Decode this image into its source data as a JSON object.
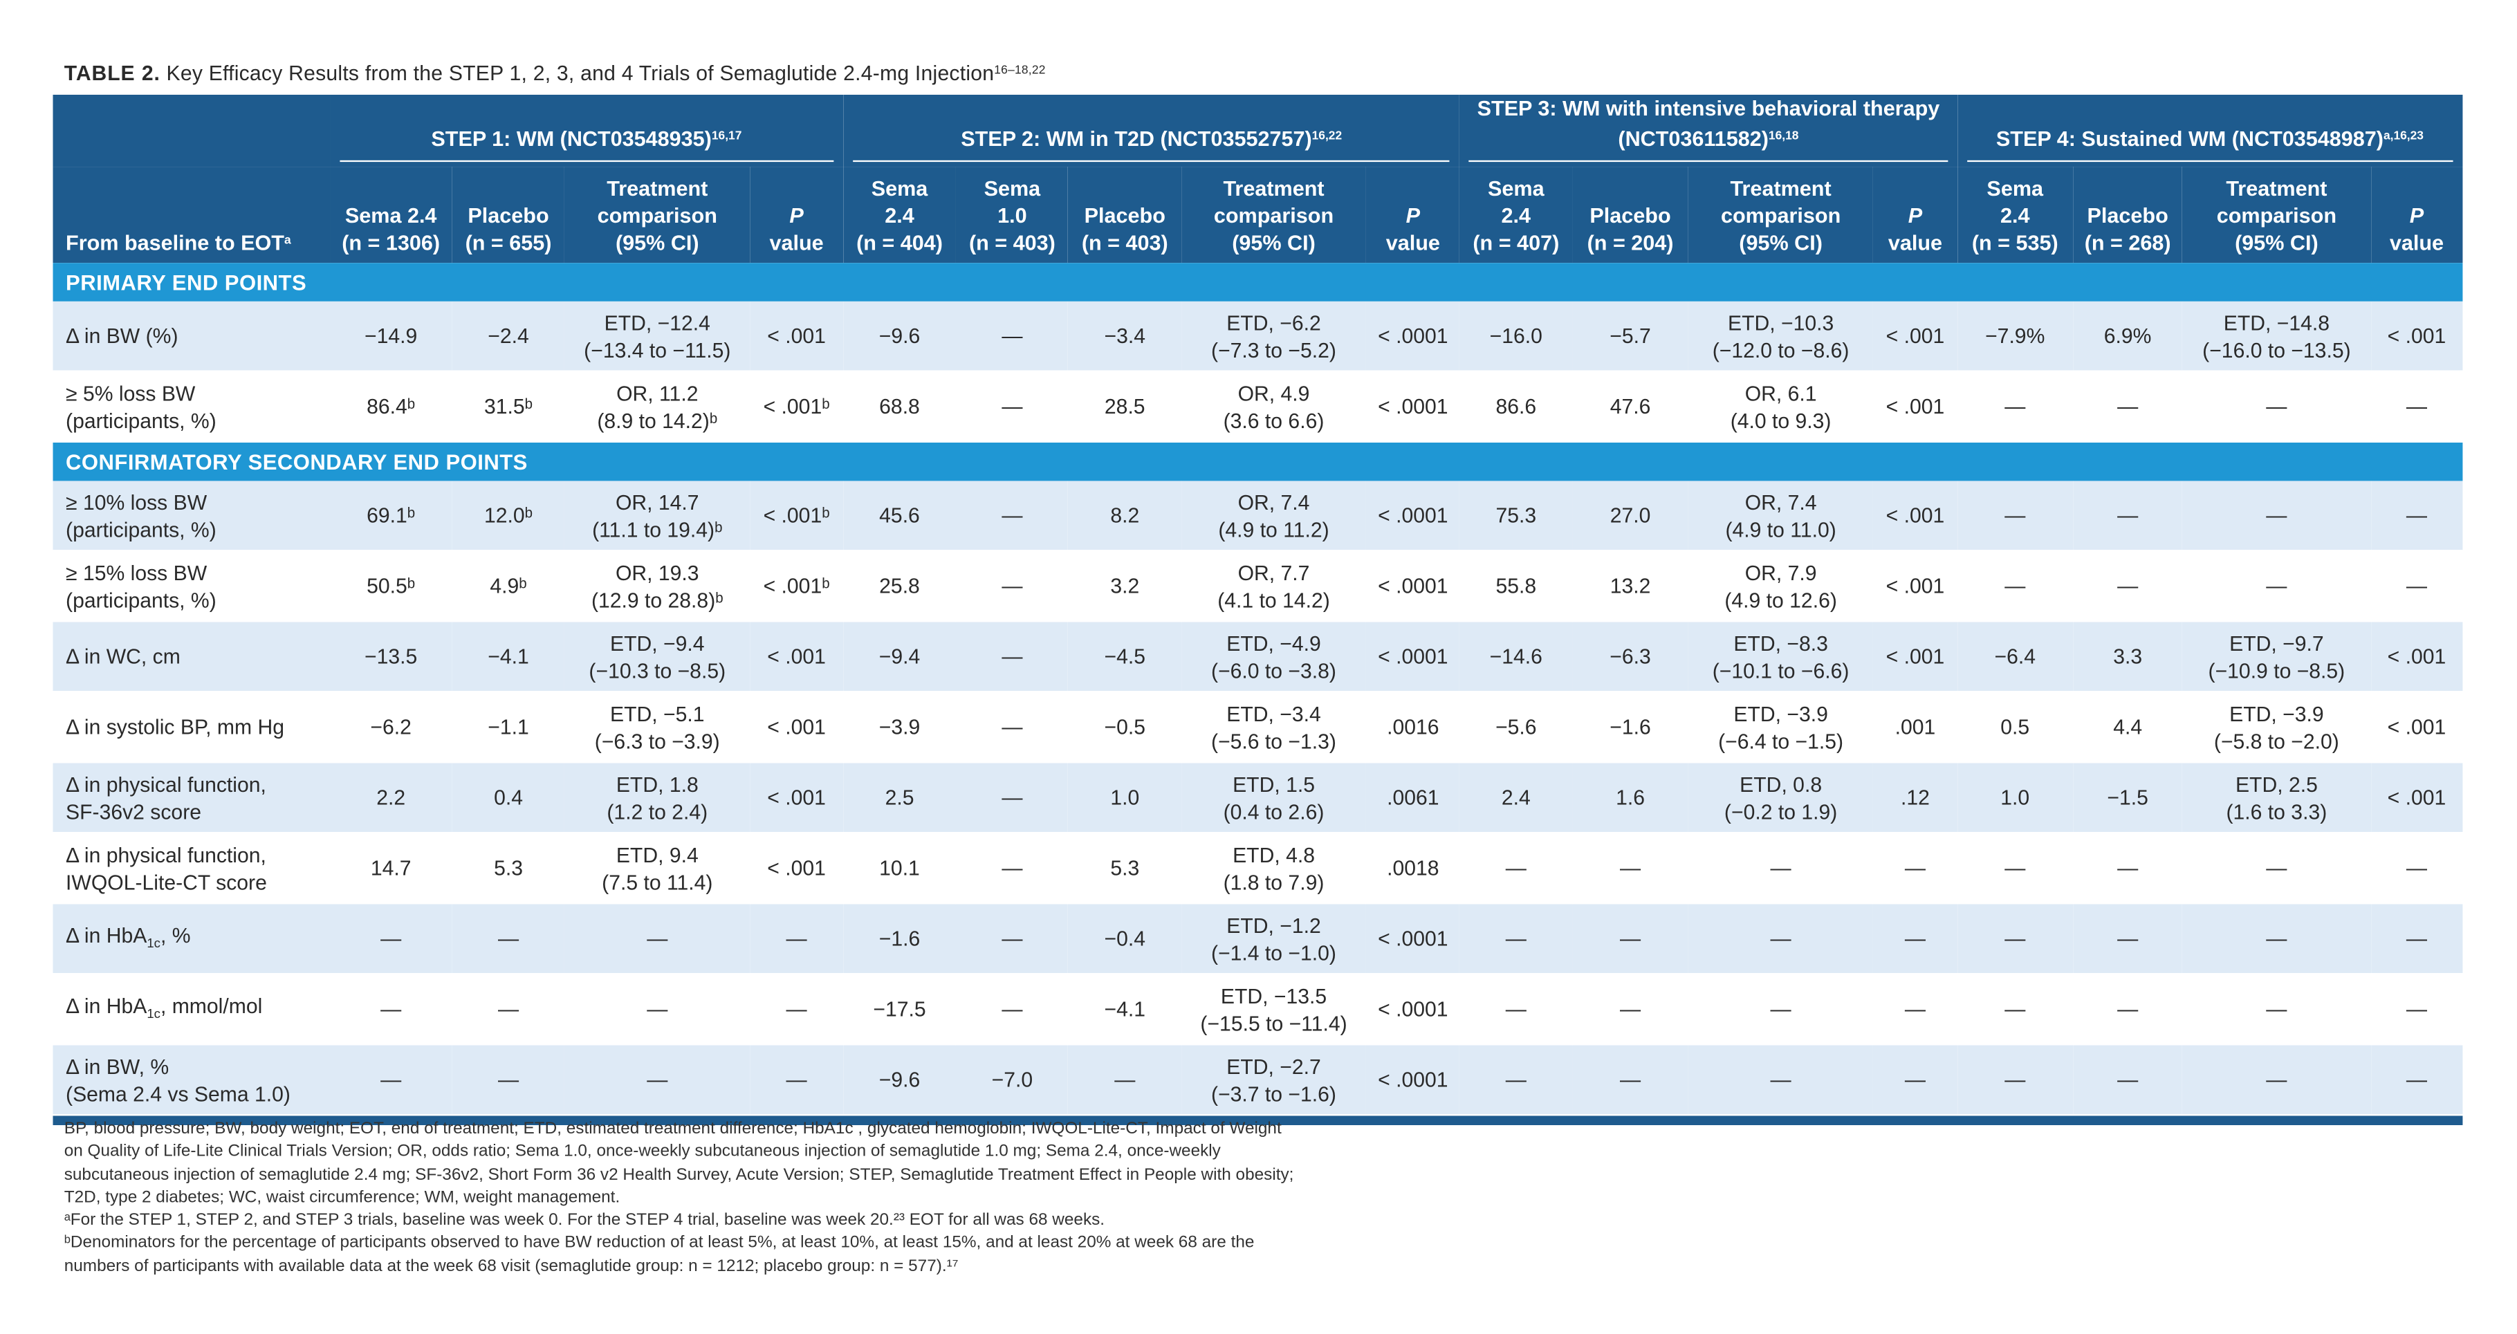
{
  "table": {
    "label": "TABLE 2.",
    "title": "Key Efficacy Results from the STEP 1, 2, 3, and 4 Trials of Semaglutide 2.4-mg Injection",
    "title_refs": "16–18,22"
  },
  "groups": [
    {
      "name": "STEP 1: WM (NCT03548935)",
      "refs": "16,17"
    },
    {
      "name": "STEP 2: WM in T2D (NCT03552757)",
      "refs": "16,22"
    },
    {
      "name": "STEP 3: WM with intensive behavioral therapy (NCT03611582)",
      "refs": "16,18"
    },
    {
      "name": "STEP 4: Sustained WM (NCT03548987)",
      "refs": "a,16,23"
    }
  ],
  "columns": {
    "first": "From baseline to EOT",
    "first_ref": "a",
    "cols": [
      "Sema 2.4\n(n = 1306)",
      "Placebo\n(n = 655)",
      "Treatment\ncomparison\n(95% CI)",
      "P\nvalue",
      "Sema\n2.4\n(n = 404)",
      "Sema\n1.0\n(n = 403)",
      "Placebo\n(n = 403)",
      "Treatment\ncomparison\n(95% CI)",
      "P\nvalue",
      "Sema\n2.4\n(n = 407)",
      "Placebo\n(n = 204)",
      "Treatment\ncomparison\n(95% CI)",
      "P\nvalue",
      "Sema\n2.4\n(n = 535)",
      "Placebo\n(n = 268)",
      "Treatment\ncomparison\n(95% CI)",
      "P\nvalue"
    ]
  },
  "sections": [
    {
      "title": "PRIMARY END POINTS",
      "rows": [
        {
          "label": "Δ in BW (%)",
          "cells": [
            "−14.9",
            "−2.4",
            "ETD, −12.4\n(−13.4 to −11.5)",
            "< .001",
            "−9.6",
            "—",
            "−3.4",
            "ETD, −6.2\n(−7.3 to −5.2)",
            "< .0001",
            "−16.0",
            "−5.7",
            "ETD, −10.3\n(−12.0 to −8.6)",
            "< .001",
            "−7.9%",
            "6.9%",
            "ETD, −14.8\n(−16.0 to −13.5)",
            "< .001"
          ]
        },
        {
          "label": "≥ 5% loss BW\n(participants, %)",
          "cells": [
            "86.4ᵇ",
            "31.5ᵇ",
            "OR, 11.2\n(8.9 to 14.2)ᵇ",
            "< .001ᵇ",
            "68.8",
            "—",
            "28.5",
            "OR, 4.9\n(3.6 to 6.6)",
            "< .0001",
            "86.6",
            "47.6",
            "OR, 6.1\n(4.0 to 9.3)",
            "< .001",
            "—",
            "—",
            "—",
            "—"
          ]
        }
      ]
    },
    {
      "title": "CONFIRMATORY SECONDARY END POINTS",
      "rows": [
        {
          "label": "≥ 10% loss BW\n(participants, %)",
          "cells": [
            "69.1ᵇ",
            "12.0ᵇ",
            "OR, 14.7\n(11.1 to 19.4)ᵇ",
            "< .001ᵇ",
            "45.6",
            "—",
            "8.2",
            "OR, 7.4\n(4.9 to 11.2)",
            "< .0001",
            "75.3",
            "27.0",
            "OR, 7.4\n(4.9 to 11.0)",
            "< .001",
            "—",
            "—",
            "—",
            "—"
          ]
        },
        {
          "label": "≥ 15% loss BW\n(participants, %)",
          "cells": [
            "50.5ᵇ",
            "4.9ᵇ",
            "OR, 19.3\n(12.9 to 28.8)ᵇ",
            "< .001ᵇ",
            "25.8",
            "—",
            "3.2",
            "OR, 7.7\n(4.1 to 14.2)",
            "< .0001",
            "55.8",
            "13.2",
            "OR, 7.9\n(4.9 to 12.6)",
            "< .001",
            "—",
            "—",
            "—",
            "—"
          ]
        },
        {
          "label": "Δ in WC, cm",
          "cells": [
            "−13.5",
            "−4.1",
            "ETD, −9.4\n(−10.3 to −8.5)",
            "< .001",
            "−9.4",
            "—",
            "−4.5",
            "ETD, −4.9\n(−6.0 to −3.8)",
            "< .0001",
            "−14.6",
            "−6.3",
            "ETD, −8.3\n(−10.1 to −6.6)",
            "< .001",
            "−6.4",
            "3.3",
            "ETD, −9.7\n(−10.9 to −8.5)",
            "< .001"
          ]
        },
        {
          "label": "Δ in systolic BP, mm Hg",
          "cells": [
            "−6.2",
            "−1.1",
            "ETD, −5.1\n(−6.3 to −3.9)",
            "< .001",
            "−3.9",
            "—",
            "−0.5",
            "ETD, −3.4\n(−5.6 to −1.3)",
            ".0016",
            "−5.6",
            "−1.6",
            "ETD, −3.9\n(−6.4 to −1.5)",
            ".001",
            "0.5",
            "4.4",
            "ETD, −3.9\n(−5.8 to −2.0)",
            "< .001"
          ]
        },
        {
          "label": "Δ in physical function,\nSF-36v2 score",
          "cells": [
            "2.2",
            "0.4",
            "ETD, 1.8\n(1.2 to 2.4)",
            "< .001",
            "2.5",
            "—",
            "1.0",
            "ETD, 1.5\n(0.4 to 2.6)",
            ".0061",
            "2.4",
            "1.6",
            "ETD, 0.8\n(−0.2 to 1.9)",
            ".12",
            "1.0",
            "−1.5",
            "ETD, 2.5\n(1.6 to 3.3)",
            "< .001"
          ]
        },
        {
          "label": "Δ in physical function,\nIWQOL-Lite-CT score",
          "cells": [
            "14.7",
            "5.3",
            "ETD, 9.4\n(7.5 to 11.4)",
            "< .001",
            "10.1",
            "—",
            "5.3",
            "ETD, 4.8\n(1.8 to 7.9)",
            ".0018",
            "—",
            "—",
            "—",
            "—",
            "—",
            "—",
            "—",
            "—"
          ]
        },
        {
          "label": "Δ in HbA",
          "label_sub": "1c",
          "label_after": ", %",
          "cells": [
            "—",
            "—",
            "—",
            "—",
            "−1.6",
            "—",
            "−0.4",
            "ETD, −1.2\n(−1.4 to −1.0)",
            "< .0001",
            "—",
            "—",
            "—",
            "—",
            "—",
            "—",
            "—",
            "—"
          ]
        },
        {
          "label": "Δ in HbA",
          "label_sub": "1c",
          "label_after": ", mmol/mol",
          "cells": [
            "—",
            "—",
            "—",
            "—",
            "−17.5",
            "—",
            "−4.1",
            "ETD, −13.5\n(−15.5 to −11.4)",
            "< .0001",
            "—",
            "—",
            "—",
            "—",
            "—",
            "—",
            "—",
            "—"
          ]
        },
        {
          "label": "Δ in BW, %\n(Sema 2.4 vs Sema 1.0)",
          "cells": [
            "—",
            "—",
            "—",
            "—",
            "−9.6",
            "−7.0",
            "—",
            "ETD, −2.7\n(−3.7 to −1.6)",
            "< .0001",
            "—",
            "—",
            "—",
            "—",
            "—",
            "—",
            "—",
            "—"
          ]
        }
      ]
    }
  ],
  "footnotes": [
    "BP, blood pressure; BW, body weight; EOT, end of treatment; ETD, estimated treatment difference; HbA1c , glycated hemoglobin; IWQOL-Lite-CT, Impact of Weight",
    "on Quality of Life-Lite Clinical Trials Version; OR, odds ratio; Sema 1.0, once-weekly subcutaneous injection of semaglutide 1.0 mg; Sema 2.4, once-weekly",
    "subcutaneous injection of semaglutide 2.4 mg; SF-36v2, Short Form 36 v2 Health Survey, Acute Version; STEP, Semaglutide Treatment Effect in People with obesity;",
    "T2D, type 2 diabetes; WC, waist circumference; WM, weight management.",
    "ᵃFor the STEP 1, STEP 2, and STEP 3 trials, baseline was week 0. For the STEP 4 trial, baseline was week 20.²³ EOT for all was 68 weeks.",
    "ᵇDenominators for the percentage of participants observed to have BW reduction of at least 5%, at least 10%, at least 15%, and at least 20% at week 68 are the",
    "numbers of participants with available data at the week 68 visit (semaglutide group: n = 1212; placebo group: n = 577).¹⁷"
  ]
}
